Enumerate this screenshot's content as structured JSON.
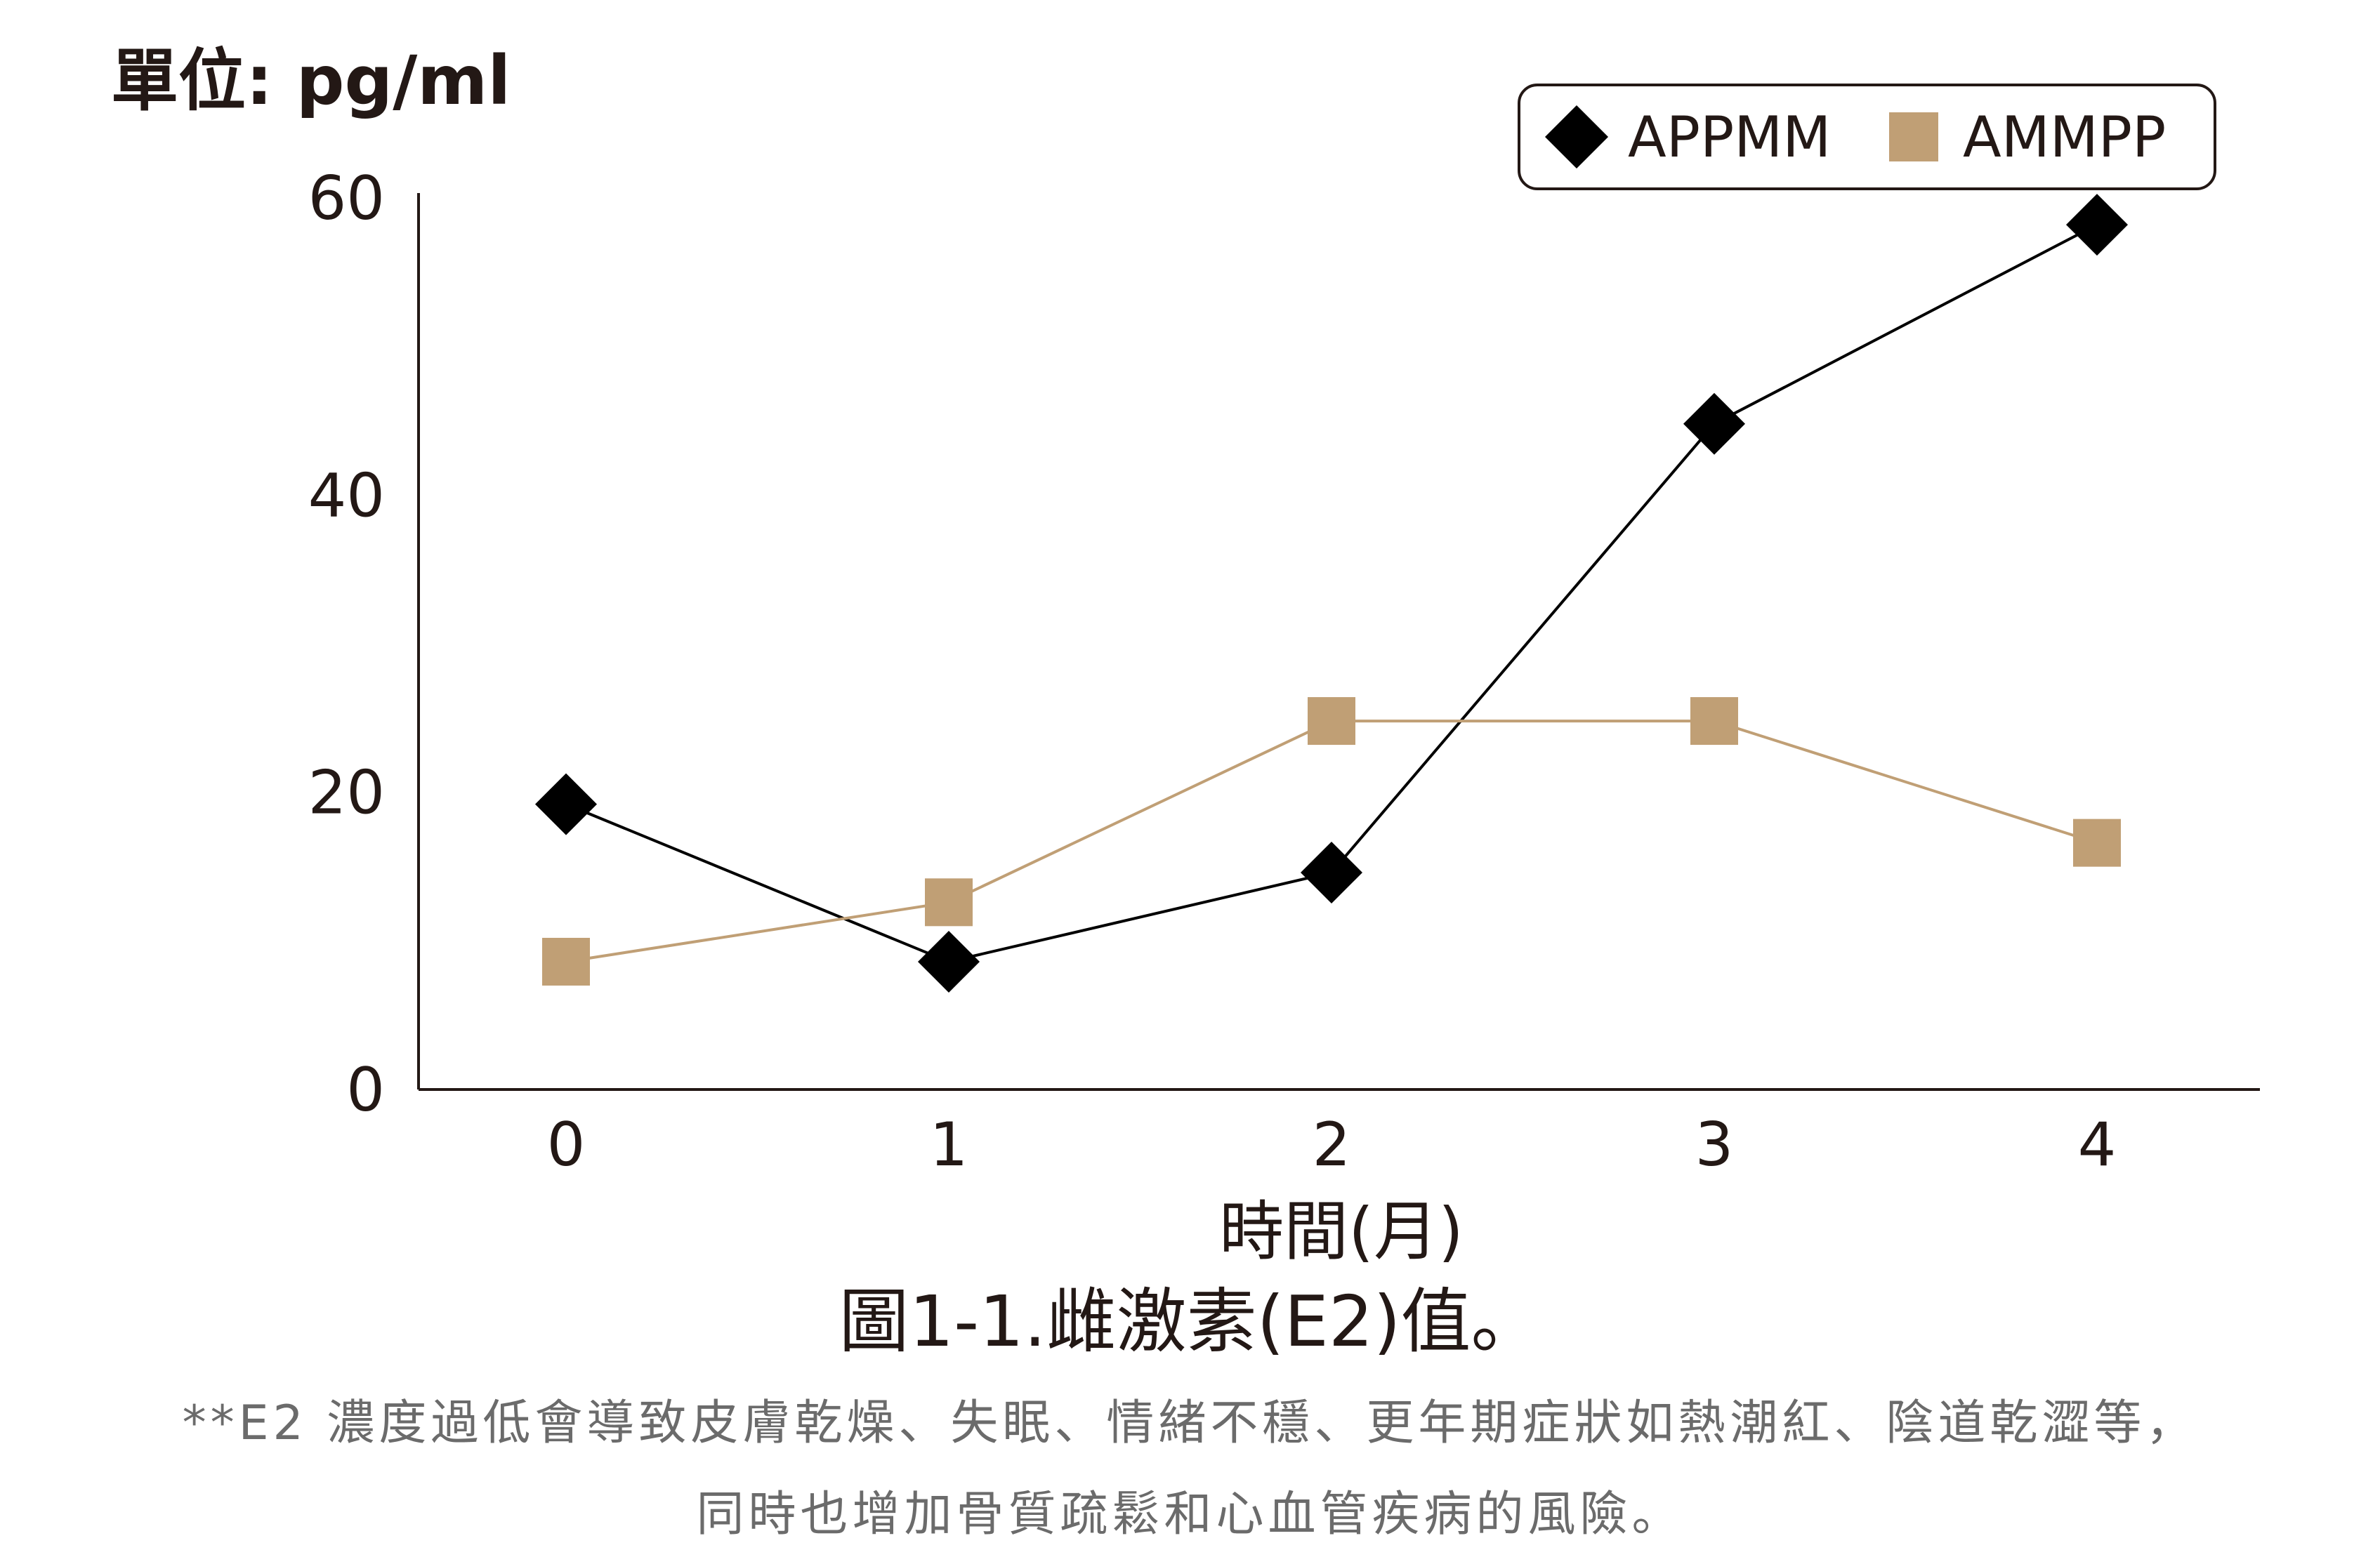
{
  "unit_label": "單位: pg/ml",
  "x_axis_title": "時間(月)",
  "figure_caption": "圖1-1.雌激素(E2)值。",
  "note_line_1": "**E2 濃度過低會導致皮膚乾燥、失眠、情緒不穩、更年期症狀如熱潮紅、陰道乾澀等，",
  "note_line_2": "同時也增加骨質疏鬆和心血管疾病的風險。",
  "chart_data": {
    "type": "line",
    "x": [
      0,
      1,
      2,
      3,
      4
    ],
    "x_ticks": [
      "0",
      "1",
      "2",
      "3",
      "4"
    ],
    "y_ticks": [
      "0",
      "20",
      "40",
      "60"
    ],
    "ylim": [
      0,
      60
    ],
    "grid": false,
    "legend_position": "top-right",
    "series": [
      {
        "name": "APPMM",
        "values": [
          19.2,
          8.6,
          14.6,
          44.8,
          58.2
        ],
        "color": "#000000",
        "marker": "diamond"
      },
      {
        "name": "AMMPP",
        "values": [
          8.6,
          12.6,
          24.8,
          24.8,
          16.6
        ],
        "color": "#c09f75",
        "marker": "square"
      }
    ]
  }
}
